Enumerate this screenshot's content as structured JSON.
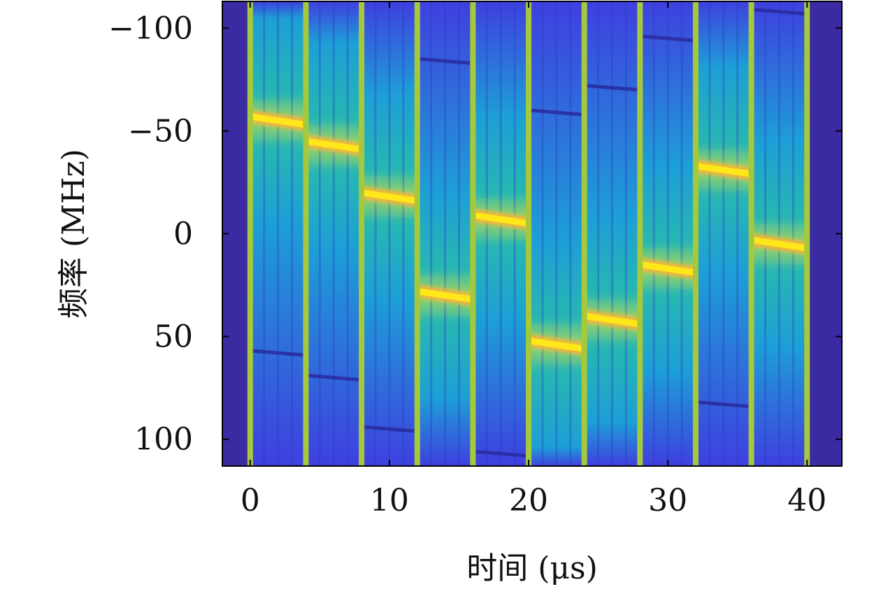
{
  "chart_data": {
    "type": "heatmap",
    "title": "",
    "xlabel": "时间 (μs)",
    "ylabel": "频率 (MHz)",
    "xlim": [
      -2,
      42.5
    ],
    "ylim": [
      -113,
      113
    ],
    "y_reversed": true,
    "xticks": [
      0,
      10,
      20,
      30,
      40
    ],
    "yticks": [
      -100,
      -50,
      0,
      50,
      100
    ],
    "xtick_labels": [
      "0",
      "10",
      "20",
      "30",
      "40"
    ],
    "ytick_labels": [
      "−100",
      "−50",
      "0",
      "50",
      "100"
    ],
    "grid": false,
    "colormap": "parula",
    "colors": {
      "background": "#3a2ba3",
      "low": "#3f3fe0",
      "mid": "#1d9fd6",
      "teal": "#27b6b2",
      "boundary": "#a6c83c",
      "high": "#ffe81a",
      "notch": "#2a2a9e"
    },
    "segment_duration": 4,
    "segments": [
      {
        "t_start": 0,
        "t_end": 4,
        "f_start": -57,
        "f_end": -53,
        "notch_start": 57,
        "notch_end": 59
      },
      {
        "t_start": 4,
        "t_end": 8,
        "f_start": -45,
        "f_end": -41,
        "notch_start": 69,
        "notch_end": 71
      },
      {
        "t_start": 8,
        "t_end": 12,
        "f_start": -20,
        "f_end": -16,
        "notch_start": 94,
        "notch_end": 96
      },
      {
        "t_start": 12,
        "t_end": 16,
        "f_start": 28,
        "f_end": 32,
        "notch_start": -85,
        "notch_end": -83
      },
      {
        "t_start": 16,
        "t_end": 20,
        "f_start": -9,
        "f_end": -5,
        "notch_start": 106,
        "notch_end": 108
      },
      {
        "t_start": 20,
        "t_end": 24,
        "f_start": 52,
        "f_end": 56,
        "notch_start": -60,
        "notch_end": -58
      },
      {
        "t_start": 24,
        "t_end": 28,
        "f_start": 40,
        "f_end": 44,
        "notch_start": -72,
        "notch_end": -70
      },
      {
        "t_start": 28,
        "t_end": 32,
        "f_start": 15,
        "f_end": 19,
        "notch_start": -96,
        "notch_end": -94
      },
      {
        "t_start": 32,
        "t_end": 36,
        "f_start": -33,
        "f_end": -29,
        "notch_start": 82,
        "notch_end": 84
      },
      {
        "t_start": 36,
        "t_end": 40,
        "f_start": 3,
        "f_end": 7,
        "notch_start": -109,
        "notch_end": -107
      }
    ]
  }
}
